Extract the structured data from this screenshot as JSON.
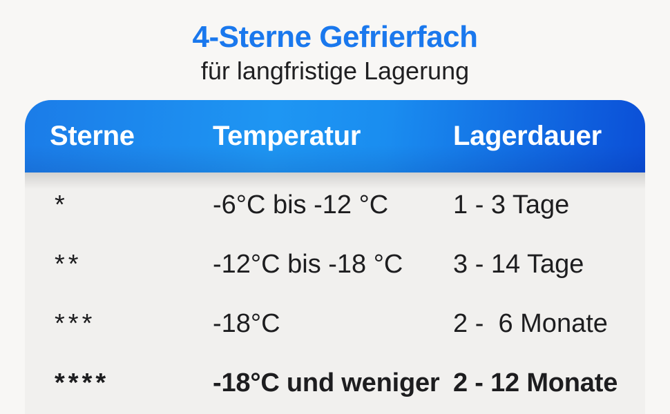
{
  "header": {
    "title": "4-Sterne Gefrierfach",
    "subtitle": "für langfristige Lagerung"
  },
  "chart_data": {
    "type": "table",
    "title": "4-Sterne Gefrierfach",
    "subtitle": "für langfristige Lagerung",
    "columns": [
      "Sterne",
      "Temperatur",
      "Lagerdauer"
    ],
    "rows": [
      [
        "*",
        "-6°C bis -12 °C",
        "1 - 3 Tage"
      ],
      [
        "**",
        "-12°C bis -18 °C",
        "3 - 14 Tage"
      ],
      [
        "***",
        "-18°C",
        "2 -  6 Monate"
      ],
      [
        "****",
        "-18°C und weniger",
        "2 - 12 Monate"
      ]
    ],
    "bold_row_index": 3,
    "legend": "none",
    "grid": "off"
  },
  "colors": {
    "title_blue": "#1a78ed",
    "header_gradient_left": "#1b7ce8",
    "header_gradient_mid": "#1e96f3",
    "header_gradient_right": "#0b4fd7",
    "header_text": "#ffffff",
    "page_background": "#f8f7f5",
    "table_background": "#f1f0ee",
    "body_text": "#1d1d1f"
  }
}
